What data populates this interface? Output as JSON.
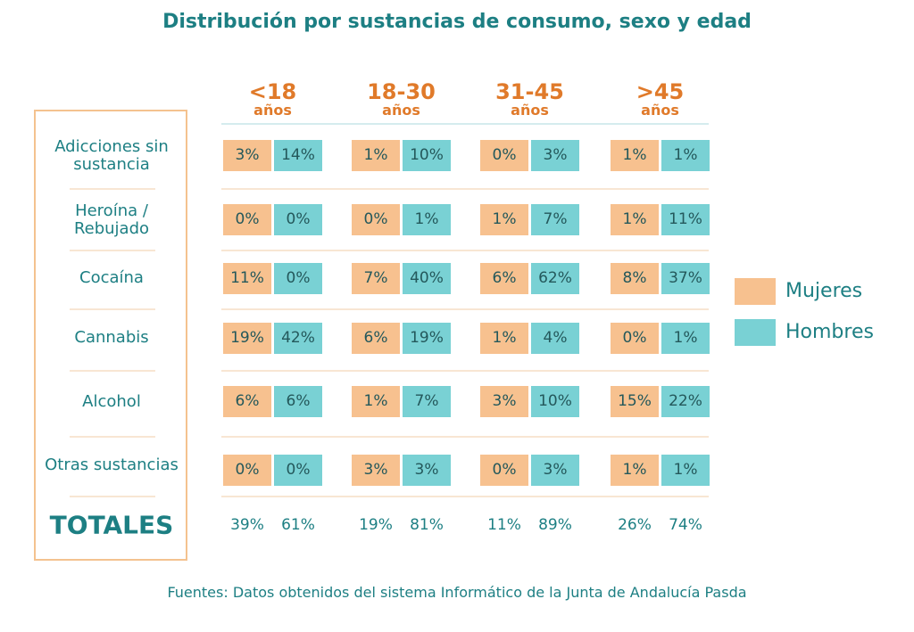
{
  "title": "Distribución por sustancias de consumo, sexo y edad",
  "source": "Fuentes: Datos obtenidos del sistema Informático de la Junta de Andalucía Pasda",
  "colors": {
    "mujeres": "#f7c18f",
    "hombres": "#79d1d4",
    "accent": "#e07a2a",
    "text": "#1d7f83"
  },
  "chart_data": {
    "type": "table",
    "title": "Distribución por sustancias de consumo, sexo y edad",
    "age_groups": [
      {
        "range": "<18",
        "unit": "años"
      },
      {
        "range": "18-30",
        "unit": "años"
      },
      {
        "range": "31-45",
        "unit": "años"
      },
      {
        "range": ">45",
        "unit": "años"
      }
    ],
    "rows": [
      {
        "label": "Adicciones sin sustancia",
        "mujeres": [
          "3%",
          "1%",
          "0%",
          "1%"
        ],
        "hombres": [
          "14%",
          "10%",
          "3%",
          "1%"
        ]
      },
      {
        "label": "Heroína / Rebujado",
        "mujeres": [
          "0%",
          "0%",
          "1%",
          "1%"
        ],
        "hombres": [
          "0%",
          "1%",
          "7%",
          "11%"
        ]
      },
      {
        "label": "Cocaína",
        "mujeres": [
          "11%",
          "7%",
          "6%",
          "8%"
        ],
        "hombres": [
          "0%",
          "40%",
          "62%",
          "37%"
        ]
      },
      {
        "label": "Cannabis",
        "mujeres": [
          "19%",
          "6%",
          "1%",
          "0%"
        ],
        "hombres": [
          "42%",
          "19%",
          "4%",
          "1%"
        ]
      },
      {
        "label": "Alcohol",
        "mujeres": [
          "6%",
          "1%",
          "3%",
          "15%"
        ],
        "hombres": [
          "6%",
          "7%",
          "10%",
          "22%"
        ]
      },
      {
        "label": "Otras sustancias",
        "mujeres": [
          "0%",
          "3%",
          "0%",
          "1%"
        ],
        "hombres": [
          "0%",
          "3%",
          "3%",
          "1%"
        ]
      }
    ],
    "totals": {
      "label": "TOTALES",
      "mujeres": [
        "39%",
        "19%",
        "11%",
        "26%"
      ],
      "hombres": [
        "61%",
        "81%",
        "89%",
        "74%"
      ]
    },
    "legend": [
      {
        "name": "Mujeres",
        "color": "#f7c18f"
      },
      {
        "name": "Hombres",
        "color": "#79d1d4"
      }
    ]
  }
}
